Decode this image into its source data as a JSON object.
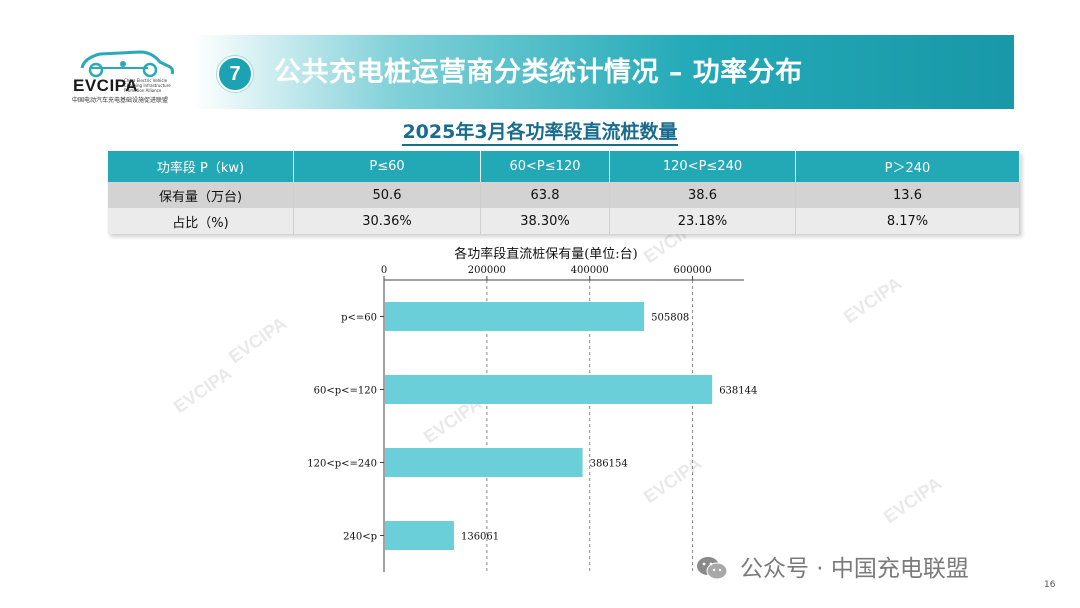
{
  "logo": {
    "name": "EVCIPA",
    "subtitle": "China Electric Vehicle Charging Infrastructure Promotion Alliance",
    "cn_name": "中国电动汽车充电基础设施促进联盟"
  },
  "header": {
    "number": "7",
    "title": "公共充电桩运营商分类统计情况 – 功率分布"
  },
  "section_title": "2025年3月各功率段直流桩数量",
  "table": {
    "headers": [
      "功率段 P（kw)",
      "P≤60",
      "60<P≤120",
      "120<P≤240",
      "P＞240"
    ],
    "rows": [
      [
        "保有量（万台)",
        "50.6",
        "63.8",
        "38.6",
        "13.6"
      ],
      [
        "占比（%)",
        "30.36%",
        "38.30%",
        "23.18%",
        "8.17%"
      ]
    ]
  },
  "chart_data": {
    "type": "bar",
    "orientation": "horizontal",
    "title": "各功率段直流桩保有量(单位:台)",
    "categories": [
      "p<=60",
      "60<p<=120",
      "120<p<=240",
      "240<p"
    ],
    "values": [
      505808,
      638144,
      386154,
      136061
    ],
    "xlim": [
      0,
      700000
    ],
    "xticks": [
      0,
      200000,
      400000,
      600000
    ],
    "xaxis_position": "top",
    "grid": "dashed vertical",
    "bar_color": "#6bcfd9"
  },
  "watermark": "EVCIPA",
  "footer": {
    "text": "公众号 · 中国充电联盟",
    "page": "16"
  }
}
